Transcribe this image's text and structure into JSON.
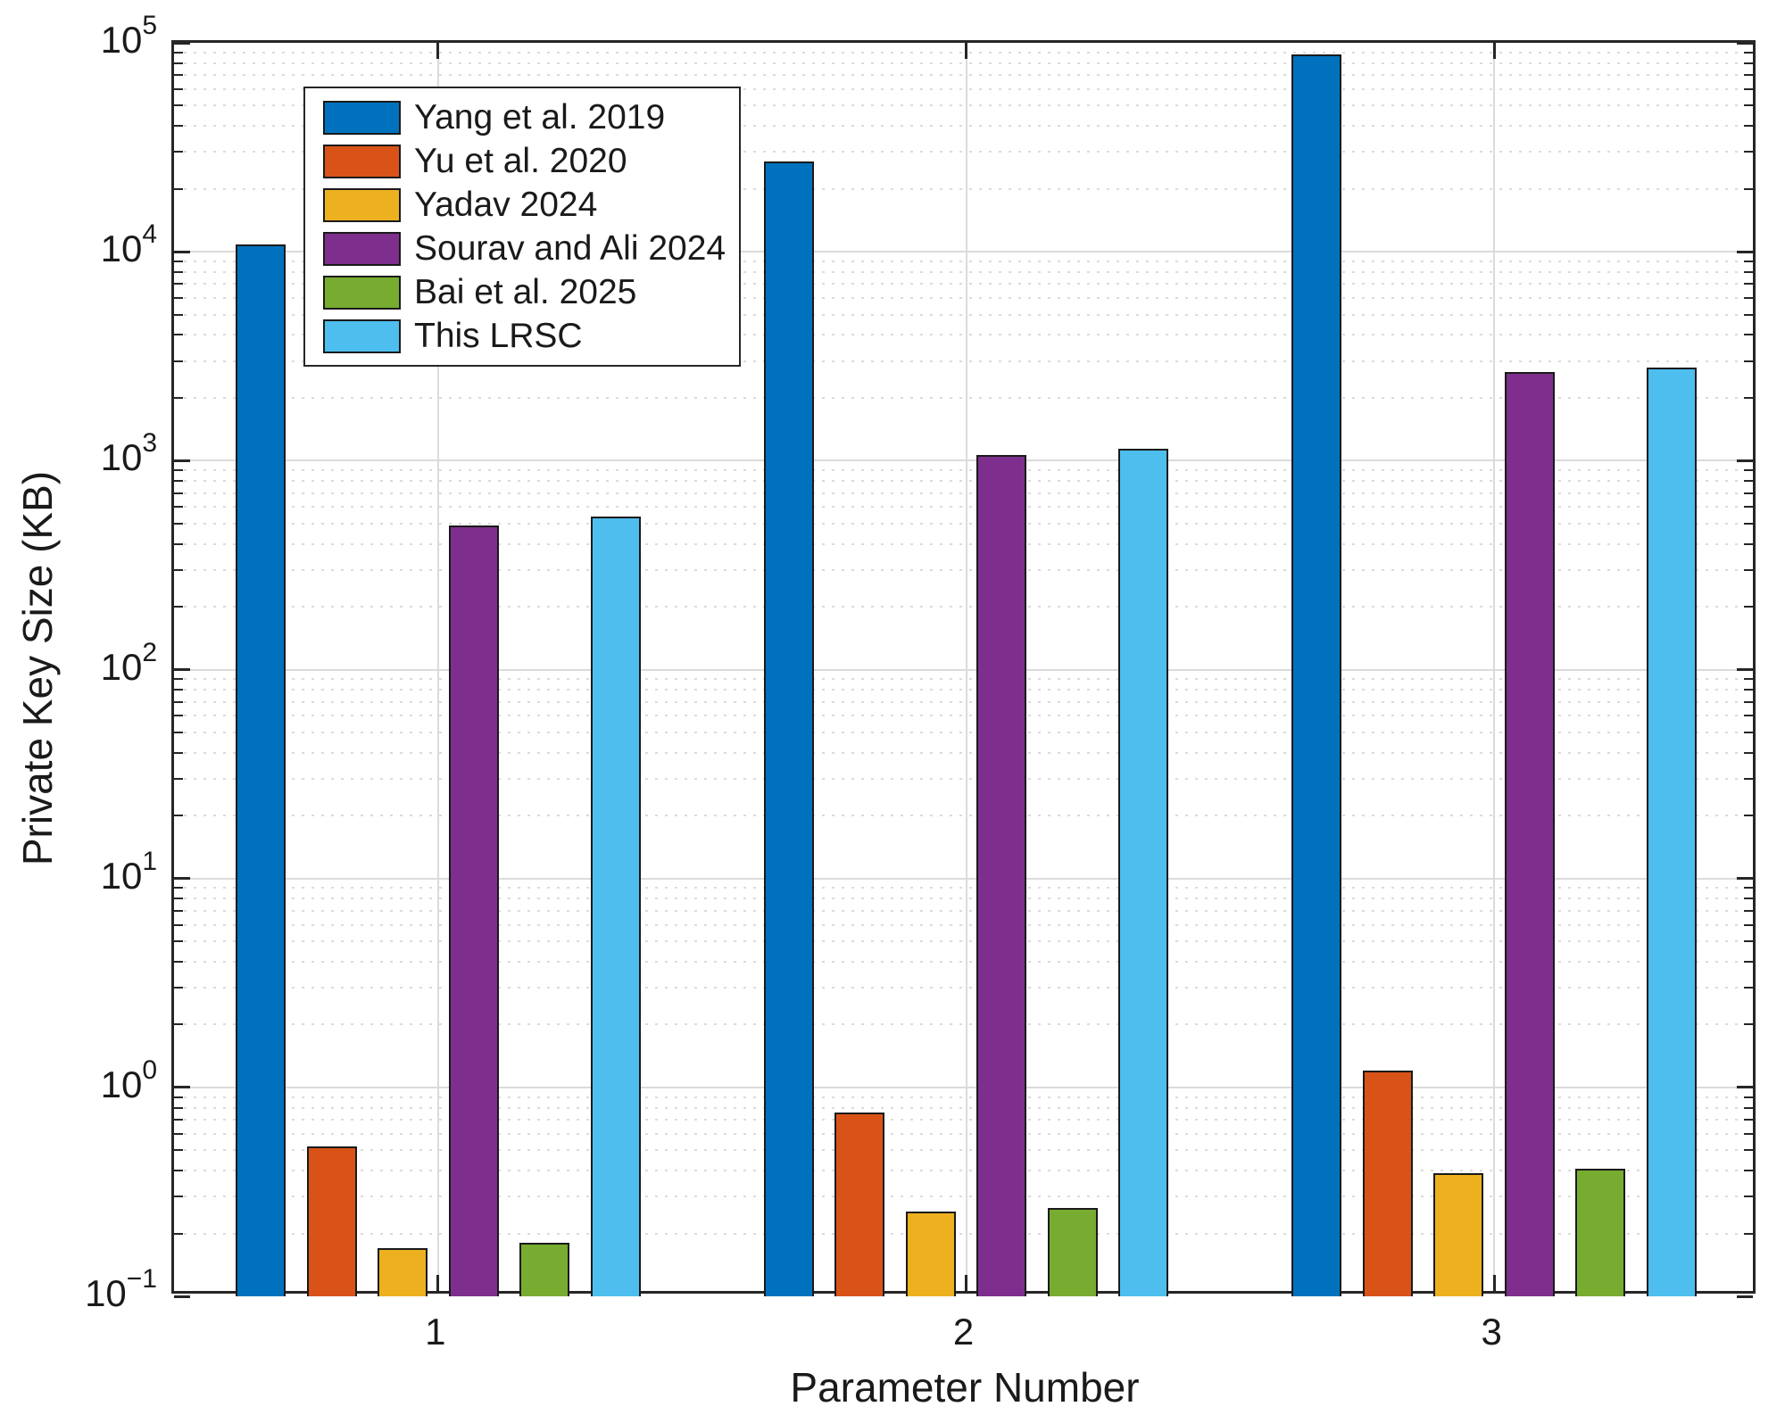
{
  "chart_data": {
    "type": "bar",
    "title": "",
    "xlabel": "Parameter Number",
    "ylabel": "Private Key Size (KB)",
    "categories": [
      "1",
      "2",
      "3"
    ],
    "series": [
      {
        "name": "Yang et al. 2019",
        "color": "#0072BD",
        "values": [
          10800,
          27000,
          88000
        ]
      },
      {
        "name": "Yu et al. 2020",
        "color": "#D95319",
        "values": [
          0.52,
          0.76,
          1.2
        ]
      },
      {
        "name": "Yadav 2024",
        "color": "#EDB120",
        "values": [
          0.17,
          0.255,
          0.39
        ]
      },
      {
        "name": "Sourav and Ali 2024",
        "color": "#7E2F8E",
        "values": [
          490,
          1060,
          2650
        ]
      },
      {
        "name": "Bai et al. 2025",
        "color": "#77AC30",
        "values": [
          0.18,
          0.265,
          0.41
        ]
      },
      {
        "name": "This LRSC",
        "color": "#4DBEEE",
        "values": [
          540,
          1140,
          2800
        ]
      }
    ],
    "y_scale": "log",
    "ylim": [
      0.1,
      100000
    ],
    "y_tick_exponents": [
      5,
      4,
      3,
      2,
      1,
      0,
      -1
    ],
    "grid": {
      "y_major": true,
      "y_minor": true,
      "x_major": true
    },
    "legend_position": "upper-left-inside",
    "colors": {
      "axis": "#262626",
      "bar_edge": "#1a1a1a",
      "grid_major": "#dbdbdb",
      "grid_minor": "#cfcfcf",
      "background": "#ffffff",
      "text": "#1a1a1a"
    }
  }
}
